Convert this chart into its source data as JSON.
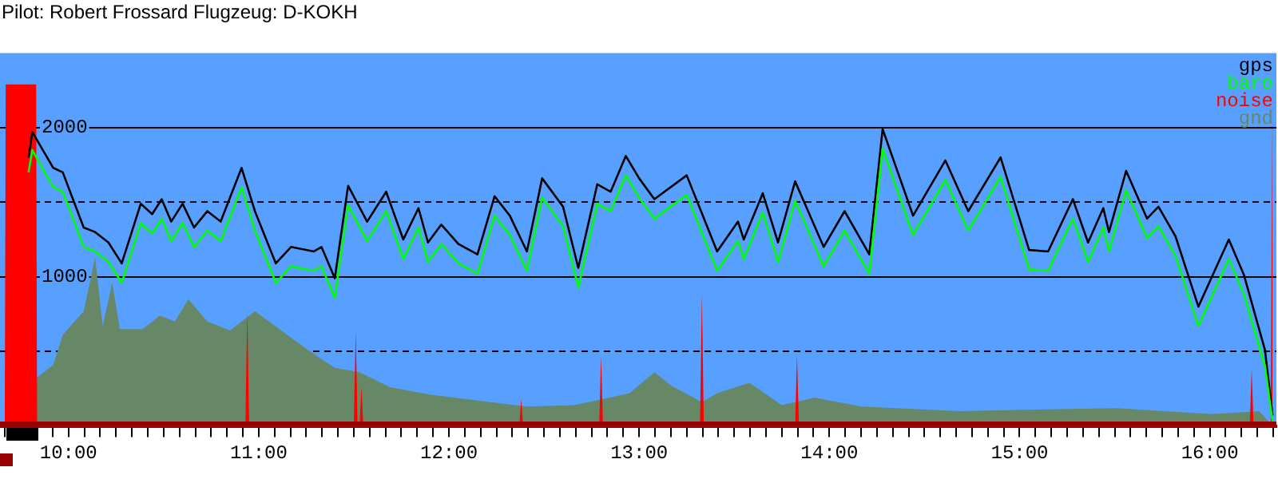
{
  "chart_data": {
    "type": "line",
    "title": "Pilot: Robert Frossard Flugzeug: D-KOKH",
    "xlim": [
      9.64,
      16.35
    ],
    "ylim": [
      0,
      2500
    ],
    "yticks": [
      {
        "value": 500,
        "label": null
      },
      1000,
      {
        "value": 1500,
        "label": null
      },
      2000
    ],
    "xticks": [
      {
        "value": 9.6667,
        "label": null
      },
      {
        "value": 9.75,
        "label": null
      },
      {
        "value": 9.8333,
        "label": null
      },
      {
        "value": 9.9167,
        "label": null
      },
      {
        "value": 10,
        "label": "10:00"
      },
      {
        "value": 10.0833,
        "label": null
      },
      {
        "value": 10.1667,
        "label": null
      },
      {
        "value": 10.25,
        "label": null
      },
      {
        "value": 10.3333,
        "label": null
      },
      {
        "value": 10.4167,
        "label": null
      },
      {
        "value": 10.5,
        "label": null
      },
      {
        "value": 10.5833,
        "label": null
      },
      {
        "value": 10.6667,
        "label": null
      },
      {
        "value": 10.75,
        "label": null
      },
      {
        "value": 10.8333,
        "label": null
      },
      {
        "value": 10.9167,
        "label": null
      },
      {
        "value": 11,
        "label": "11:00"
      },
      {
        "value": 11.0833,
        "label": null
      },
      {
        "value": 11.1667,
        "label": null
      },
      {
        "value": 11.25,
        "label": null
      },
      {
        "value": 11.3333,
        "label": null
      },
      {
        "value": 11.4167,
        "label": null
      },
      {
        "value": 11.5,
        "label": null
      },
      {
        "value": 11.5833,
        "label": null
      },
      {
        "value": 11.6667,
        "label": null
      },
      {
        "value": 11.75,
        "label": null
      },
      {
        "value": 11.8333,
        "label": null
      },
      {
        "value": 11.9167,
        "label": null
      },
      {
        "value": 12,
        "label": "12:00"
      },
      {
        "value": 12.0833,
        "label": null
      },
      {
        "value": 12.1667,
        "label": null
      },
      {
        "value": 12.25,
        "label": null
      },
      {
        "value": 12.3333,
        "label": null
      },
      {
        "value": 12.4167,
        "label": null
      },
      {
        "value": 12.5,
        "label": null
      },
      {
        "value": 12.5833,
        "label": null
      },
      {
        "value": 12.6667,
        "label": null
      },
      {
        "value": 12.75,
        "label": null
      },
      {
        "value": 12.8333,
        "label": null
      },
      {
        "value": 12.9167,
        "label": null
      },
      {
        "value": 13,
        "label": "13:00"
      },
      {
        "value": 13.0833,
        "label": null
      },
      {
        "value": 13.1667,
        "label": null
      },
      {
        "value": 13.25,
        "label": null
      },
      {
        "value": 13.3333,
        "label": null
      },
      {
        "value": 13.4167,
        "label": null
      },
      {
        "value": 13.5,
        "label": null
      },
      {
        "value": 13.5833,
        "label": null
      },
      {
        "value": 13.6667,
        "label": null
      },
      {
        "value": 13.75,
        "label": null
      },
      {
        "value": 13.8333,
        "label": null
      },
      {
        "value": 13.9167,
        "label": null
      },
      {
        "value": 14,
        "label": "14:00"
      },
      {
        "value": 14.0833,
        "label": null
      },
      {
        "value": 14.1667,
        "label": null
      },
      {
        "value": 14.25,
        "label": null
      },
      {
        "value": 14.3333,
        "label": null
      },
      {
        "value": 14.4167,
        "label": null
      },
      {
        "value": 14.5,
        "label": null
      },
      {
        "value": 14.5833,
        "label": null
      },
      {
        "value": 14.6667,
        "label": null
      },
      {
        "value": 14.75,
        "label": null
      },
      {
        "value": 14.8333,
        "label": null
      },
      {
        "value": 14.9167,
        "label": null
      },
      {
        "value": 15,
        "label": "15:00"
      },
      {
        "value": 15.0833,
        "label": null
      },
      {
        "value": 15.1667,
        "label": null
      },
      {
        "value": 15.25,
        "label": null
      },
      {
        "value": 15.3333,
        "label": null
      },
      {
        "value": 15.4167,
        "label": null
      },
      {
        "value": 15.5,
        "label": null
      },
      {
        "value": 15.5833,
        "label": null
      },
      {
        "value": 15.6667,
        "label": null
      },
      {
        "value": 15.75,
        "label": null
      },
      {
        "value": 15.8333,
        "label": null
      },
      {
        "value": 15.9167,
        "label": null
      },
      {
        "value": 16,
        "label": "16:00"
      },
      {
        "value": 16.0833,
        "label": null
      },
      {
        "value": 16.1667,
        "label": null
      },
      {
        "value": 16.25,
        "label": null
      },
      {
        "value": 16.3333,
        "label": null
      }
    ],
    "grid": "y",
    "legend": "top right",
    "marker": "none",
    "bands": [
      {
        "axis": "y",
        "from": 0,
        "to": 30,
        "color": "#990000"
      }
    ],
    "series": [
      {
        "name": "gnd",
        "type": "area",
        "color": "#668866",
        "x": [
          9.83,
          9.92,
          9.97,
          10.08,
          10.14,
          10.18,
          10.23,
          10.27,
          10.39,
          10.48,
          10.56,
          10.63,
          10.73,
          10.85,
          10.98,
          11.15,
          11.27,
          11.4,
          11.53,
          11.69,
          11.9,
          12.15,
          12.41,
          12.66,
          12.95,
          13.08,
          13.17,
          13.33,
          13.41,
          13.58,
          13.75,
          13.92,
          14.17,
          14.68,
          15.51,
          16.01,
          16.26,
          16.33
        ],
        "values": [
          320,
          410,
          610,
          770,
          1130,
          670,
          960,
          650,
          650,
          740,
          700,
          850,
          700,
          640,
          770,
          610,
          500,
          390,
          360,
          260,
          210,
          170,
          130,
          140,
          220,
          360,
          270,
          160,
          220,
          290,
          140,
          190,
          130,
          100,
          120,
          80,
          100,
          0
        ]
      },
      {
        "name": "noise",
        "type": "area",
        "color": "#ff0000",
        "x": [
          9.665,
          9.67,
          9.83,
          9.835,
          10.93,
          10.94,
          10.95,
          11.5,
          11.51,
          11.52,
          11.53,
          11.54,
          11.55,
          12.37,
          12.38,
          12.39,
          12.79,
          12.8,
          12.81,
          13.32,
          13.33,
          13.34,
          13.82,
          13.83,
          13.84,
          16.21,
          16.22,
          16.23,
          16.32,
          16.33
        ],
        "values": [
          0,
          2290,
          2290,
          0,
          0,
          770,
          0,
          0,
          640,
          0,
          0,
          260,
          0,
          0,
          180,
          0,
          0,
          470,
          0,
          0,
          890,
          0,
          0,
          480,
          0,
          0,
          390,
          0,
          0,
          2290
        ]
      },
      {
        "name": "baro",
        "type": "line",
        "color": "#00ff00",
        "x": [
          9.79,
          9.81,
          9.92,
          9.97,
          10.08,
          10.14,
          10.21,
          10.28,
          10.38,
          10.44,
          10.49,
          10.54,
          10.6,
          10.66,
          10.73,
          10.8,
          10.91,
          10.98,
          11.09,
          11.17,
          11.29,
          11.33,
          11.4,
          11.47,
          11.57,
          11.67,
          11.76,
          11.84,
          11.89,
          11.96,
          12.05,
          12.15,
          12.24,
          12.32,
          12.41,
          12.49,
          12.6,
          12.68,
          12.78,
          12.85,
          12.93,
          13,
          13.08,
          13.25,
          13.41,
          13.52,
          13.55,
          13.65,
          13.73,
          13.82,
          13.97,
          14.08,
          14.21,
          14.28,
          14.36,
          14.44,
          14.61,
          14.73,
          14.9,
          15.05,
          15.15,
          15.28,
          15.36,
          15.44,
          15.47,
          15.56,
          15.67,
          15.73,
          15.82,
          15.94,
          16.1,
          16.18,
          16.29,
          16.33
        ],
        "values": [
          1700,
          1850,
          1600,
          1570,
          1200,
          1170,
          1100,
          960,
          1360,
          1290,
          1390,
          1240,
          1360,
          1200,
          1310,
          1240,
          1600,
          1310,
          960,
          1070,
          1040,
          1070,
          860,
          1480,
          1240,
          1440,
          1120,
          1330,
          1100,
          1220,
          1090,
          1020,
          1410,
          1280,
          1040,
          1530,
          1340,
          930,
          1490,
          1440,
          1680,
          1530,
          1390,
          1550,
          1040,
          1240,
          1120,
          1430,
          1100,
          1510,
          1070,
          1310,
          1020,
          1860,
          1570,
          1280,
          1650,
          1310,
          1670,
          1050,
          1040,
          1390,
          1100,
          1330,
          1170,
          1580,
          1260,
          1340,
          1140,
          670,
          1120,
          880,
          400,
          30
        ]
      },
      {
        "name": "gps",
        "type": "line",
        "color": "#000000",
        "x": [
          9.79,
          9.81,
          9.92,
          9.97,
          10.08,
          10.14,
          10.21,
          10.28,
          10.38,
          10.44,
          10.49,
          10.54,
          10.6,
          10.66,
          10.73,
          10.8,
          10.91,
          10.98,
          11.09,
          11.17,
          11.29,
          11.33,
          11.4,
          11.47,
          11.57,
          11.67,
          11.76,
          11.84,
          11.89,
          11.96,
          12.05,
          12.15,
          12.24,
          12.32,
          12.41,
          12.49,
          12.6,
          12.68,
          12.78,
          12.85,
          12.93,
          13,
          13.08,
          13.25,
          13.41,
          13.52,
          13.55,
          13.65,
          13.73,
          13.82,
          13.97,
          14.08,
          14.21,
          14.28,
          14.36,
          14.44,
          14.61,
          14.73,
          14.9,
          15.05,
          15.15,
          15.28,
          15.36,
          15.44,
          15.47,
          15.56,
          15.67,
          15.73,
          15.82,
          15.94,
          16.1,
          16.18,
          16.29,
          16.33
        ],
        "values": [
          1800,
          1970,
          1730,
          1700,
          1330,
          1300,
          1230,
          1090,
          1490,
          1420,
          1520,
          1370,
          1490,
          1330,
          1440,
          1370,
          1730,
          1440,
          1090,
          1200,
          1170,
          1200,
          990,
          1610,
          1370,
          1570,
          1250,
          1460,
          1230,
          1350,
          1220,
          1150,
          1540,
          1410,
          1170,
          1660,
          1470,
          1060,
          1620,
          1570,
          1810,
          1660,
          1520,
          1680,
          1170,
          1370,
          1250,
          1560,
          1230,
          1640,
          1200,
          1440,
          1150,
          1990,
          1700,
          1410,
          1780,
          1440,
          1800,
          1180,
          1170,
          1520,
          1230,
          1460,
          1300,
          1710,
          1390,
          1470,
          1270,
          800,
          1250,
          1010,
          510,
          70
        ]
      }
    ]
  }
}
